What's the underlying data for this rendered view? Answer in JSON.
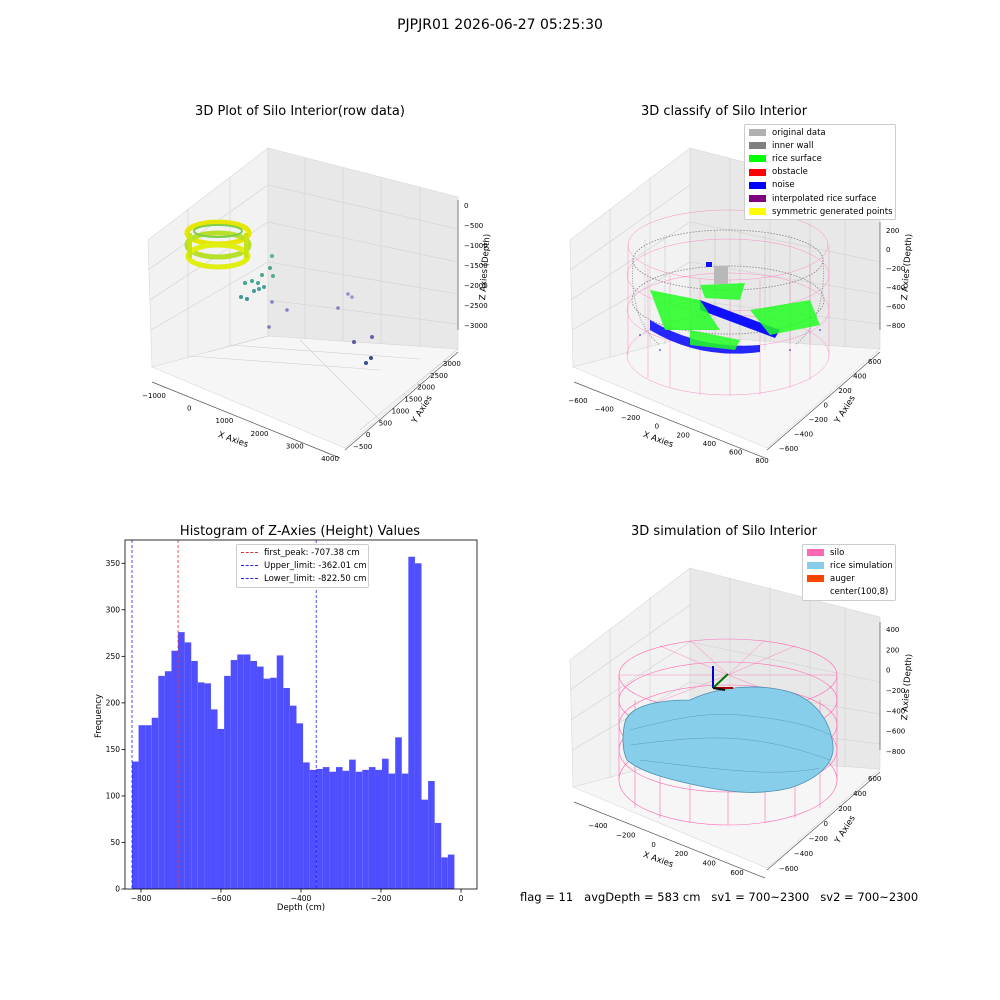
{
  "suptitle": "PJPJR01 2026-06-27 05:25:30",
  "colors": {
    "histogram_bar": "#4f4fff",
    "first_peak_line": "#dd3333",
    "limit_line": "#2020ff",
    "silo": "#ff69b4",
    "rice_simulation": "#87ceeb",
    "auger": "#ff4500",
    "inner_wall": "#808080",
    "rice_surface": "#00ff00",
    "noise": "#0000ff",
    "original_data": "#b0b0b0"
  },
  "chart_data": [
    {
      "type": "scatter",
      "projection": "3d",
      "title": "3D Plot of Silo Interior(row data)",
      "xlabel": "X Axies",
      "ylabel": "Y Axies",
      "zlabel": "Z Axies (Depth)",
      "x_ticks": [
        "−1000",
        "0",
        "1000",
        "2000",
        "3000",
        "4000"
      ],
      "y_ticks": [
        "−500",
        "0",
        "500",
        "1000",
        "1500",
        "2000",
        "2500",
        "3000"
      ],
      "z_ticks": [
        "0",
        "−500",
        "−1000",
        "−1500",
        "−2000",
        "−2500",
        "−3000"
      ],
      "xlim": [
        -1000,
        4000
      ],
      "ylim": [
        -500,
        3000
      ],
      "zlim": [
        -3000,
        0
      ],
      "grid": true
    },
    {
      "type": "scatter",
      "projection": "3d",
      "title": "3D classify of Silo Interior",
      "xlabel": "X Axies",
      "ylabel": "Y Axies",
      "zlabel": "Z Axies (Depth)",
      "x_ticks": [
        "−600",
        "−400",
        "−200",
        "0",
        "200",
        "400",
        "600",
        "800"
      ],
      "y_ticks": [
        "−600",
        "−400",
        "−200",
        "0",
        "200",
        "400",
        "600"
      ],
      "z_ticks": [
        "200",
        "0",
        "−200",
        "−400",
        "−600",
        "−800"
      ],
      "legend": [
        {
          "label": "original data",
          "color": "#b0b0b0"
        },
        {
          "label": "inner wall",
          "color": "#808080"
        },
        {
          "label": "rice surface",
          "color": "#00ff00"
        },
        {
          "label": "obstacle",
          "color": "#ff0000"
        },
        {
          "label": "noise",
          "color": "#0000ff"
        },
        {
          "label": "interpolated rice surface",
          "color": "#800080"
        },
        {
          "label": "symmetric generated points",
          "color": "#ffff00"
        }
      ],
      "legend_position": "top-right",
      "grid": true
    },
    {
      "type": "bar",
      "title": "Histogram of Z-Axies (Height) Values",
      "xlabel": "Depth (cm)",
      "ylabel": "Frequency",
      "xlim": [
        -840,
        40
      ],
      "ylim": [
        0,
        375
      ],
      "x_ticks": [
        -800,
        -600,
        -400,
        -200,
        0
      ],
      "x_tick_labels": [
        "−800",
        "−600",
        "−400",
        "−200",
        "0"
      ],
      "y_ticks": [
        0,
        50,
        100,
        150,
        200,
        250,
        300,
        350
      ],
      "bin_start": -822.5,
      "bin_width": 16.45,
      "values": [
        137,
        176,
        176,
        184,
        229,
        234,
        256,
        276,
        265,
        245,
        222,
        221,
        193,
        172,
        229,
        246,
        252,
        252,
        245,
        239,
        226,
        227,
        251,
        216,
        197,
        178,
        136,
        128,
        129,
        131,
        126,
        131,
        127,
        139,
        126,
        128,
        131,
        128,
        140,
        124,
        163,
        124,
        357,
        350,
        96,
        116,
        71,
        34,
        37
      ],
      "vlines": [
        {
          "label": "first_peak: -707.38 cm",
          "x": -707.38,
          "color": "#dd3333"
        },
        {
          "label": "Upper_limit: -362.01 cm",
          "x": -362.01,
          "color": "#2020ff"
        },
        {
          "label": "Lower_limit: -822.50 cm",
          "x": -822.5,
          "color": "#2020ff"
        }
      ],
      "legend_position": "top-center"
    },
    {
      "type": "surface",
      "projection": "3d",
      "title": "3D simulation of Silo Interior",
      "xlabel": "X Axies",
      "ylabel": "Y Axies",
      "zlabel": "Z Axies (Depth)",
      "x_ticks": [
        "−400",
        "−200",
        "0",
        "200",
        "400",
        "600"
      ],
      "y_ticks": [
        "−600",
        "−400",
        "−200",
        "0",
        "200",
        "400",
        "600"
      ],
      "z_ticks": [
        "400",
        "200",
        "0",
        "−200",
        "−400",
        "−600",
        "−800"
      ],
      "legend": [
        {
          "label": "silo",
          "color": "#ff69b4"
        },
        {
          "label": "rice simulation",
          "color": "#87ceeb"
        },
        {
          "label": "auger",
          "color": "#ff4500"
        },
        {
          "label": "center(100,8)",
          "color": "#ffffff"
        }
      ],
      "legend_position": "top-right",
      "grid": true
    }
  ],
  "footer": {
    "flag": "flag = 11",
    "avg_depth": "avgDepth = 583 cm",
    "sv1": "sv1 = 700~2300",
    "sv2": "sv2 = 700~2300"
  }
}
